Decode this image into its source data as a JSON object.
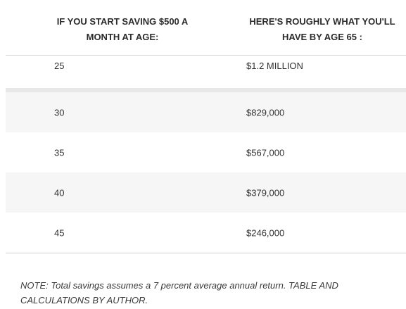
{
  "table": {
    "headers": {
      "age": "IF YOU START SAVING $500 A MONTH AT AGE:",
      "total": "HERE'S ROUGHLY WHAT YOU'LL HAVE BY AGE 65 :"
    },
    "rows": [
      {
        "age": "25",
        "total": "$1.2 MILLION"
      },
      {
        "age": "30",
        "total": "$829,000"
      },
      {
        "age": "35",
        "total": "$567,000"
      },
      {
        "age": "40",
        "total": "$379,000"
      },
      {
        "age": "45",
        "total": "$246,000"
      }
    ]
  },
  "note": "NOTE: Total savings assumes a 7 percent average annual return. TABLE AND CALCULATIONS BY AUTHOR."
}
